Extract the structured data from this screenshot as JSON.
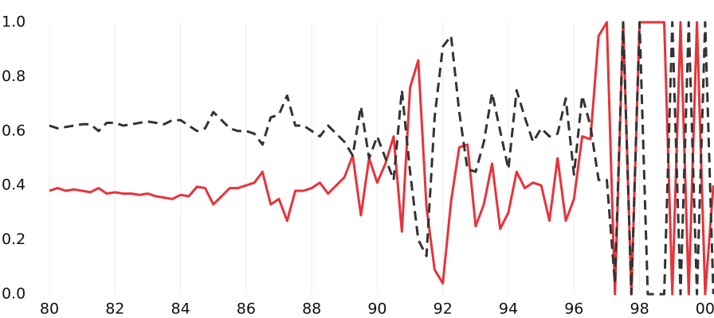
{
  "chart_data": {
    "type": "line",
    "x": [
      80,
      80.25,
      80.5,
      80.75,
      81,
      81.25,
      81.5,
      81.75,
      82,
      82.25,
      82.5,
      82.75,
      83,
      83.25,
      83.5,
      83.75,
      84,
      84.25,
      84.5,
      84.75,
      85,
      85.25,
      85.5,
      85.75,
      86,
      86.25,
      86.5,
      86.75,
      87,
      87.25,
      87.5,
      87.75,
      88,
      88.25,
      88.5,
      88.75,
      89,
      89.25,
      89.5,
      89.75,
      90,
      90.25,
      90.5,
      90.75,
      91,
      91.25,
      91.5,
      91.75,
      92,
      92.25,
      92.5,
      92.75,
      93,
      93.25,
      93.5,
      93.75,
      94,
      94.25,
      94.5,
      94.75,
      95,
      95.25,
      95.5,
      95.75,
      96,
      96.25,
      96.5,
      96.75,
      97,
      97.25,
      97.5,
      97.75,
      98,
      98.25,
      98.5,
      98.75,
      99,
      99.25,
      99.5,
      99.75,
      100,
      100.25
    ],
    "series": [
      {
        "color": "#e8333a",
        "line_style": "solid",
        "values": [
          0.38,
          0.39,
          0.38,
          0.385,
          0.38,
          0.375,
          0.39,
          0.37,
          0.375,
          0.37,
          0.37,
          0.365,
          0.37,
          0.36,
          0.355,
          0.35,
          0.365,
          0.36,
          0.395,
          0.39,
          0.33,
          0.36,
          0.39,
          0.39,
          0.4,
          0.41,
          0.45,
          0.33,
          0.35,
          0.27,
          0.38,
          0.38,
          0.39,
          0.41,
          0.37,
          0.4,
          0.43,
          0.51,
          0.29,
          0.5,
          0.41,
          0.48,
          0.58,
          0.23,
          0.76,
          0.86,
          0.32,
          0.09,
          0.04,
          0.34,
          0.54,
          0.55,
          0.25,
          0.33,
          0.48,
          0.24,
          0.3,
          0.45,
          0.39,
          0.41,
          0.4,
          0.27,
          0.5,
          0.27,
          0.35,
          0.58,
          0.57,
          0.95,
          1.0,
          0.0,
          1.0,
          0.0,
          1.0,
          1.0,
          1.0,
          1.0,
          0.0,
          1.0,
          0.0,
          1.0,
          0.0,
          0.4
        ]
      },
      {
        "color": "#333333",
        "line_style": "dashed",
        "values": [
          0.62,
          0.61,
          0.615,
          0.62,
          0.625,
          0.625,
          0.6,
          0.63,
          0.63,
          0.62,
          0.625,
          0.63,
          0.635,
          0.63,
          0.625,
          0.64,
          0.64,
          0.62,
          0.6,
          0.61,
          0.67,
          0.64,
          0.61,
          0.6,
          0.6,
          0.59,
          0.55,
          0.65,
          0.66,
          0.73,
          0.62,
          0.62,
          0.6,
          0.58,
          0.62,
          0.59,
          0.56,
          0.51,
          0.69,
          0.5,
          0.58,
          0.5,
          0.42,
          0.75,
          0.45,
          0.2,
          0.14,
          0.65,
          0.91,
          0.95,
          0.67,
          0.46,
          0.45,
          0.56,
          0.74,
          0.6,
          0.46,
          0.75,
          0.65,
          0.56,
          0.61,
          0.58,
          0.59,
          0.72,
          0.44,
          0.73,
          0.62,
          0.42,
          0.42,
          0.04,
          1.0,
          0.0,
          1.0,
          0.0,
          0.0,
          0.0,
          1.0,
          0.0,
          1.0,
          0.0,
          1.0,
          0.0
        ]
      }
    ],
    "xlim": [
      80,
      100.27
    ],
    "xticks": [
      80,
      82,
      84,
      86,
      88,
      90,
      92,
      94,
      96,
      98,
      {
        "value": 100,
        "label": "00"
      }
    ],
    "ylim": [
      0,
      1
    ],
    "yticks": [
      {
        "value": 0,
        "label": "0.0"
      },
      0.2,
      0.4,
      0.6,
      0.8,
      {
        "value": 1,
        "label": "1.0"
      }
    ],
    "grid": "x"
  }
}
